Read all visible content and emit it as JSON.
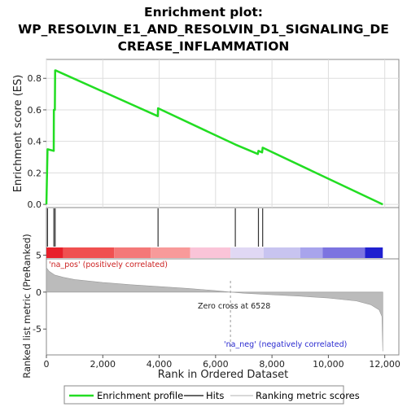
{
  "chart_data": {
    "type": "line",
    "title_lines": [
      "Enrichment plot:",
      "WP_RESOLVIN_E1_AND_RESOLVIN_D1_SIGNALING_DE",
      "CREASE_INFLAMMATION"
    ],
    "ylabel": "Enrichment score (ES)",
    "metric_ylabel": "Ranked list metric (PreRanked)",
    "xlabel": "Rank in Ordered Dataset",
    "xlim": [
      0,
      12500
    ],
    "x_ticks": [
      0,
      2000,
      4000,
      6000,
      8000,
      10000,
      12000
    ],
    "x_tick_labels": [
      "0",
      "2,000",
      "4,000",
      "6,000",
      "8,000",
      "10,000",
      "12,000"
    ],
    "es_ylim": [
      -0.02,
      0.92
    ],
    "es_y_ticks": [
      0.0,
      0.2,
      0.4,
      0.6,
      0.8
    ],
    "es_y_tick_labels": [
      "0.0",
      "0.2",
      "0.4",
      "0.6",
      "0.8"
    ],
    "metric_ylim": [
      -8.5,
      4.5
    ],
    "metric_y_ticks": [
      5,
      0,
      -5
    ],
    "metric_y_tick_labels": [
      "5",
      "0",
      "-5"
    ],
    "enrichment_profile": {
      "name": "Enrichment profile",
      "x": [
        0,
        40,
        45,
        260,
        265,
        300,
        310,
        330,
        3950,
        3960,
        6700,
        7500,
        7520,
        7650,
        7670,
        11930
      ],
      "y": [
        0.0,
        0.35,
        0.35,
        0.34,
        0.6,
        0.6,
        0.85,
        0.85,
        0.56,
        0.61,
        0.38,
        0.32,
        0.34,
        0.33,
        0.36,
        0.0
      ]
    },
    "hits": [
      40,
      265,
      310,
      3960,
      6700,
      7520,
      7670
    ],
    "metric_curve": {
      "x": [
        0,
        100,
        300,
        600,
        1000,
        2000,
        3000,
        4000,
        5000,
        6000,
        6528,
        7000,
        8000,
        9000,
        10000,
        11000,
        11500,
        11800,
        11900,
        11930
      ],
      "y": [
        3.3,
        2.8,
        2.3,
        2.0,
        1.7,
        1.3,
        1.0,
        0.75,
        0.5,
        0.2,
        0.0,
        -0.15,
        -0.35,
        -0.55,
        -0.8,
        -1.2,
        -1.7,
        -2.4,
        -3.3,
        -8.0
      ]
    },
    "zero_cross_rank": 6528,
    "annotations": {
      "positive": "'na_pos' (positively correlated)",
      "negative": "'na_neg' (negatively correlated)",
      "zero_cross": "Zero cross at 6528"
    },
    "color_bar": {
      "segments": [
        {
          "from": 0,
          "to": 600,
          "color": "#e8202a"
        },
        {
          "from": 600,
          "to": 2400,
          "color": "#f05050"
        },
        {
          "from": 2400,
          "to": 3700,
          "color": "#f47878"
        },
        {
          "from": 3700,
          "to": 5100,
          "color": "#f89a9a"
        },
        {
          "from": 5100,
          "to": 6528,
          "color": "#fac4d8"
        },
        {
          "from": 6528,
          "to": 7700,
          "color": "#e0d8f4"
        },
        {
          "from": 7700,
          "to": 9000,
          "color": "#c8c4f0"
        },
        {
          "from": 9000,
          "to": 9800,
          "color": "#a8a4ec"
        },
        {
          "from": 9800,
          "to": 11300,
          "color": "#7c74e0"
        },
        {
          "from": 11300,
          "to": 11930,
          "color": "#2020d0"
        }
      ]
    },
    "legend": [
      "Enrichment profile",
      "Hits",
      "Ranking metric scores"
    ],
    "colors": {
      "profile": "#22dd22",
      "hits": "#333333",
      "metric": "#bbbbbb",
      "grid": "#dddddd"
    }
  }
}
